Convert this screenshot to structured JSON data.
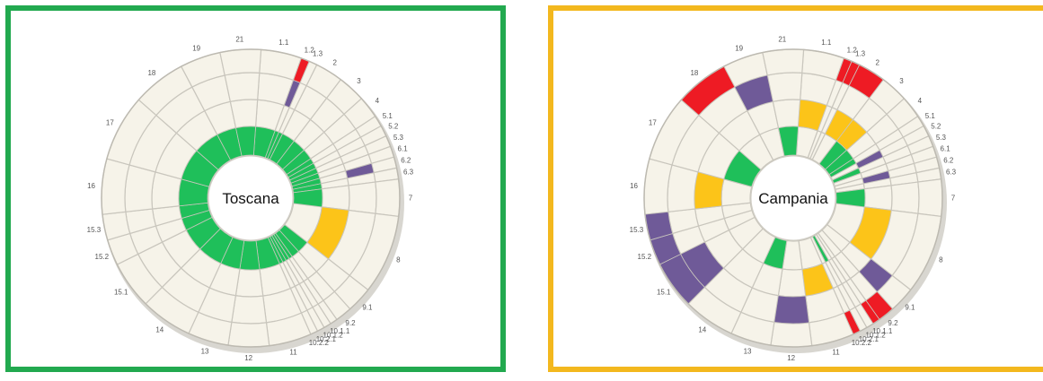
{
  "chart_data": [
    {
      "type": "sunburst-radial",
      "title": "Toscana",
      "categories": [
        "1.1",
        "1.2",
        "1.3",
        "2",
        "3",
        "4",
        "5.1",
        "5.2",
        "5.3",
        "6.1",
        "6.2",
        "6.3",
        "7",
        "8",
        "9.1",
        "9.2",
        "10.1.1",
        "10.1.2",
        "10.2.1",
        "10.2.2",
        "11",
        "12",
        "13",
        "14",
        "15.1",
        "15.2",
        "15.3",
        "16",
        "17",
        "18",
        "19",
        "21"
      ],
      "levels": 4,
      "colors": {
        "background": "#f6f3e9",
        "green": "#1fbf5a",
        "yellow": "#fcc419",
        "purple": "#6f5a98",
        "red": "#ee1b24",
        "grid": "#c9c6bd"
      },
      "cells": [
        {
          "category": "1.1",
          "level": 0,
          "color": "green"
        },
        {
          "category": "1.2",
          "level": 0,
          "color": "green"
        },
        {
          "category": "1.2",
          "level": 2,
          "color": "purple"
        },
        {
          "category": "1.2",
          "level": 3,
          "color": "red"
        },
        {
          "category": "1.3",
          "level": 0,
          "color": "green"
        },
        {
          "category": "2",
          "level": 0,
          "color": "green"
        },
        {
          "category": "3",
          "level": 0,
          "color": "green"
        },
        {
          "category": "4",
          "level": 0,
          "color": "green"
        },
        {
          "category": "5.1",
          "level": 0,
          "color": "green"
        },
        {
          "category": "5.2",
          "level": 0,
          "color": "green"
        },
        {
          "category": "5.3",
          "level": 0,
          "color": "green"
        },
        {
          "category": "6.1",
          "level": 0,
          "color": "green"
        },
        {
          "category": "6.2",
          "level": 0,
          "color": "green"
        },
        {
          "category": "6.2",
          "level": 2,
          "color": "purple"
        },
        {
          "category": "6.3",
          "level": 0,
          "color": "green"
        },
        {
          "category": "7",
          "level": 0,
          "color": "green"
        },
        {
          "category": "8",
          "level": 1,
          "color": "yellow"
        },
        {
          "category": "9.1",
          "level": 0,
          "color": "green"
        },
        {
          "category": "9.2",
          "level": 0,
          "color": "green"
        },
        {
          "category": "10.1.1",
          "level": 0,
          "color": "green"
        },
        {
          "category": "10.1.2",
          "level": 0,
          "color": "green"
        },
        {
          "category": "10.2.1",
          "level": 0,
          "color": "green"
        },
        {
          "category": "10.2.2",
          "level": 0,
          "color": "green"
        },
        {
          "category": "11",
          "level": 0,
          "color": "green"
        },
        {
          "category": "12",
          "level": 0,
          "color": "green"
        },
        {
          "category": "13",
          "level": 0,
          "color": "green"
        },
        {
          "category": "14",
          "level": 0,
          "color": "green"
        },
        {
          "category": "15.1",
          "level": 0,
          "color": "green"
        },
        {
          "category": "15.2",
          "level": 0,
          "color": "green"
        },
        {
          "category": "15.3",
          "level": 0,
          "color": "green"
        },
        {
          "category": "16",
          "level": 0,
          "color": "green"
        },
        {
          "category": "17",
          "level": 0,
          "color": "green"
        },
        {
          "category": "18",
          "level": 0,
          "color": "green"
        },
        {
          "category": "19",
          "level": 0,
          "color": "green"
        },
        {
          "category": "21",
          "level": 0,
          "color": "green"
        }
      ]
    },
    {
      "type": "sunburst-radial",
      "title": "Campania",
      "categories": [
        "1.1",
        "1.2",
        "1.3",
        "2",
        "3",
        "4",
        "5.1",
        "5.2",
        "5.3",
        "6.1",
        "6.2",
        "6.3",
        "7",
        "8",
        "9.1",
        "9.2",
        "10.1.1",
        "10.1.2",
        "10.2.1",
        "10.2.2",
        "11",
        "12",
        "13",
        "14",
        "15.1",
        "15.2",
        "15.3",
        "16",
        "17",
        "18",
        "19",
        "21"
      ],
      "levels": 4,
      "colors": {
        "background": "#f6f3e9",
        "green": "#1fbf5a",
        "yellow": "#fcc419",
        "purple": "#6f5a98",
        "red": "#ee1b24",
        "grid": "#c9c6bd"
      },
      "cells": [
        {
          "category": "1.1",
          "level": 1,
          "color": "yellow"
        },
        {
          "category": "1.2",
          "level": 3,
          "color": "red"
        },
        {
          "category": "1.3",
          "level": 3,
          "color": "red"
        },
        {
          "category": "2",
          "level": 3,
          "color": "red"
        },
        {
          "category": "2",
          "level": 1,
          "color": "yellow"
        },
        {
          "category": "3",
          "level": 0,
          "color": "green"
        },
        {
          "category": "3",
          "level": 1,
          "color": "yellow"
        },
        {
          "category": "4",
          "level": 0,
          "color": "green"
        },
        {
          "category": "5.1",
          "level": 0,
          "color": "green"
        },
        {
          "category": "5.2",
          "level": 1,
          "color": "purple"
        },
        {
          "category": "5.3",
          "level": 0,
          "color": "green"
        },
        {
          "category": "6.2",
          "level": 1,
          "color": "purple"
        },
        {
          "category": "7",
          "level": 0,
          "color": "green"
        },
        {
          "category": "8",
          "level": 1,
          "color": "yellow"
        },
        {
          "category": "9.1",
          "level": 2,
          "color": "purple"
        },
        {
          "category": "9.2",
          "level": 3,
          "color": "red"
        },
        {
          "category": "10.1.1",
          "level": 3,
          "color": "red"
        },
        {
          "category": "10.2.1",
          "level": 0,
          "color": "green"
        },
        {
          "category": "10.2.2",
          "level": 3,
          "color": "red"
        },
        {
          "category": "11",
          "level": 1,
          "color": "yellow"
        },
        {
          "category": "12",
          "level": 2,
          "color": "purple"
        },
        {
          "category": "13",
          "level": 0,
          "color": "green"
        },
        {
          "category": "15.1",
          "level": 3,
          "color": "purple"
        },
        {
          "category": "15.1",
          "level": 2,
          "color": "purple"
        },
        {
          "category": "15.2",
          "level": 3,
          "color": "purple"
        },
        {
          "category": "15.3",
          "level": 3,
          "color": "purple"
        },
        {
          "category": "16",
          "level": 1,
          "color": "yellow"
        },
        {
          "category": "17",
          "level": 0,
          "color": "green"
        },
        {
          "category": "18",
          "level": 3,
          "color": "red"
        },
        {
          "category": "19",
          "level": 2,
          "color": "purple"
        },
        {
          "category": "21",
          "level": 0,
          "color": "green"
        }
      ]
    }
  ]
}
